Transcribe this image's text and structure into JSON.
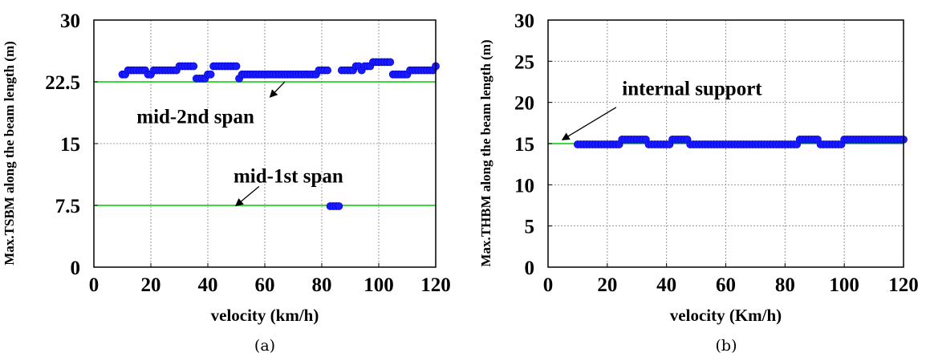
{
  "colors": {
    "reference_line": "#00cc00",
    "marker": "#1a1aff",
    "grid": "#9a9a9a"
  },
  "chart_data": [
    {
      "type": "scatter",
      "panel": "(a)",
      "xlabel": "velocity (km/h)",
      "ylabel": "Max.TSBM along the beam length (m)",
      "xlim": [
        0,
        120
      ],
      "ylim": [
        0,
        30
      ],
      "xticks": [
        0,
        20,
        40,
        60,
        80,
        100,
        120
      ],
      "yticks": [
        0,
        7.5,
        15,
        22.5,
        30
      ],
      "ytick_labels": [
        "0",
        "7.5",
        "15",
        "22.5",
        "30"
      ],
      "grid": true,
      "reference_lines": [
        22.5,
        7.5
      ],
      "annotations": [
        {
          "text": "mid-2nd span",
          "x": 15,
          "y": 17.5
        },
        {
          "text": "mid-1st span",
          "x": 49,
          "y": 10.3
        }
      ],
      "arrows": [
        {
          "from": [
            67,
            22.5
          ],
          "to": [
            62,
            20.7
          ]
        },
        {
          "from": [
            58,
            9.8
          ],
          "to": [
            50,
            7.5
          ]
        }
      ],
      "series": [
        {
          "x": [
            10,
            11,
            12,
            13,
            14,
            15,
            16,
            17,
            18,
            19,
            20,
            21,
            22,
            23,
            24,
            25,
            26,
            27,
            28,
            29,
            30,
            31,
            32,
            33,
            34,
            35,
            36,
            37,
            38,
            39,
            40,
            41,
            42,
            43,
            44,
            45,
            46,
            47,
            48,
            49,
            50,
            51,
            52,
            53,
            54,
            55,
            56,
            57,
            58,
            59,
            60,
            61,
            62,
            63,
            64,
            65,
            66,
            67,
            68,
            69,
            70,
            71,
            72,
            73,
            74,
            75,
            76,
            77,
            78,
            79,
            80,
            81,
            82,
            83,
            84,
            85,
            86,
            87,
            88,
            89,
            90,
            91,
            92,
            93,
            94,
            95,
            96,
            97,
            98,
            99,
            100,
            101,
            102,
            103,
            104,
            105,
            106,
            107,
            108,
            109,
            110,
            111,
            112,
            113,
            114,
            115,
            116,
            117,
            118,
            119,
            120
          ],
          "y": [
            23.4,
            23.4,
            23.9,
            23.9,
            23.9,
            23.9,
            23.9,
            23.9,
            23.9,
            23.4,
            23.4,
            23.9,
            23.9,
            23.9,
            23.9,
            23.9,
            23.9,
            23.9,
            23.9,
            23.9,
            24.4,
            24.4,
            24.4,
            24.4,
            24.4,
            24.4,
            22.9,
            22.9,
            22.9,
            22.9,
            23.4,
            23.4,
            24.4,
            24.4,
            24.4,
            24.4,
            24.4,
            24.4,
            24.4,
            24.4,
            24.4,
            22.9,
            23.4,
            23.4,
            23.4,
            23.4,
            23.4,
            23.4,
            23.4,
            23.4,
            23.4,
            23.4,
            23.4,
            23.4,
            23.4,
            23.4,
            23.4,
            23.4,
            23.4,
            23.4,
            23.4,
            23.4,
            23.4,
            23.4,
            23.4,
            23.4,
            23.4,
            23.4,
            23.4,
            23.9,
            23.9,
            23.9,
            23.9,
            7.4,
            7.4,
            7.4,
            7.4,
            23.9,
            23.9,
            23.9,
            23.9,
            23.9,
            24.4,
            24.4,
            23.9,
            24.4,
            24.4,
            24.4,
            24.9,
            24.9,
            24.9,
            24.9,
            24.9,
            24.9,
            24.9,
            23.4,
            23.4,
            23.4,
            23.4,
            23.4,
            23.4,
            23.9,
            23.9,
            23.9,
            23.9,
            23.9,
            23.9,
            23.9,
            23.9,
            23.9,
            24.4
          ]
        }
      ]
    },
    {
      "type": "scatter",
      "panel": "(b)",
      "xlabel": "velocity (Km/h)",
      "ylabel": "Max.THBM along the beam length (m)",
      "xlim": [
        0,
        120
      ],
      "ylim": [
        0,
        30
      ],
      "xticks": [
        0,
        20,
        40,
        60,
        80,
        100,
        120
      ],
      "yticks": [
        0,
        5,
        10,
        15,
        20,
        25,
        30
      ],
      "ytick_labels": [
        "0",
        "5",
        "10",
        "15",
        "20",
        "25",
        "30"
      ],
      "grid": true,
      "reference_lines": [
        15
      ],
      "annotations": [
        {
          "text": "internal support",
          "x": 25,
          "y": 20.9
        }
      ],
      "arrows": [
        {
          "from": [
            23,
            19.4
          ],
          "to": [
            5,
            15.5
          ]
        }
      ],
      "series": [
        {
          "x": [
            10,
            11,
            12,
            13,
            14,
            15,
            16,
            17,
            18,
            19,
            20,
            21,
            22,
            23,
            24,
            25,
            26,
            27,
            28,
            29,
            30,
            31,
            32,
            33,
            34,
            35,
            36,
            37,
            38,
            39,
            40,
            41,
            42,
            43,
            44,
            45,
            46,
            47,
            48,
            49,
            50,
            51,
            52,
            53,
            54,
            55,
            56,
            57,
            58,
            59,
            60,
            61,
            62,
            63,
            64,
            65,
            66,
            67,
            68,
            69,
            70,
            71,
            72,
            73,
            74,
            75,
            76,
            77,
            78,
            79,
            80,
            81,
            82,
            83,
            84,
            85,
            86,
            87,
            88,
            89,
            90,
            91,
            92,
            93,
            94,
            95,
            96,
            97,
            98,
            99,
            100,
            101,
            102,
            103,
            104,
            105,
            106,
            107,
            108,
            109,
            110,
            111,
            112,
            113,
            114,
            115,
            116,
            117,
            118,
            119,
            120
          ],
          "y": [
            14.9,
            14.9,
            14.9,
            14.9,
            14.9,
            14.9,
            14.9,
            14.9,
            14.9,
            14.9,
            14.9,
            14.9,
            14.9,
            14.9,
            14.9,
            15.5,
            15.5,
            15.5,
            15.5,
            15.5,
            15.5,
            15.5,
            15.5,
            15.5,
            14.9,
            14.9,
            14.9,
            14.9,
            14.9,
            14.9,
            14.9,
            14.9,
            15.5,
            15.5,
            15.5,
            15.5,
            15.5,
            15.5,
            14.9,
            14.9,
            14.9,
            14.9,
            14.9,
            14.9,
            14.9,
            14.9,
            14.9,
            14.9,
            14.9,
            14.9,
            14.9,
            14.9,
            14.9,
            14.9,
            14.9,
            14.9,
            14.9,
            14.9,
            14.9,
            14.9,
            14.9,
            14.9,
            14.9,
            14.9,
            14.9,
            14.9,
            14.9,
            14.9,
            14.9,
            14.9,
            14.9,
            14.9,
            14.9,
            14.9,
            14.9,
            15.5,
            15.5,
            15.5,
            15.5,
            15.5,
            15.5,
            15.5,
            14.9,
            14.9,
            14.9,
            14.9,
            14.9,
            14.9,
            14.9,
            14.9,
            15.5,
            15.5,
            15.5,
            15.5,
            15.5,
            15.5,
            15.5,
            15.5,
            15.5,
            15.5,
            15.5,
            15.5,
            15.5,
            15.5,
            15.5,
            15.5,
            15.5,
            15.5,
            15.5,
            15.5,
            15.5
          ]
        }
      ]
    }
  ]
}
